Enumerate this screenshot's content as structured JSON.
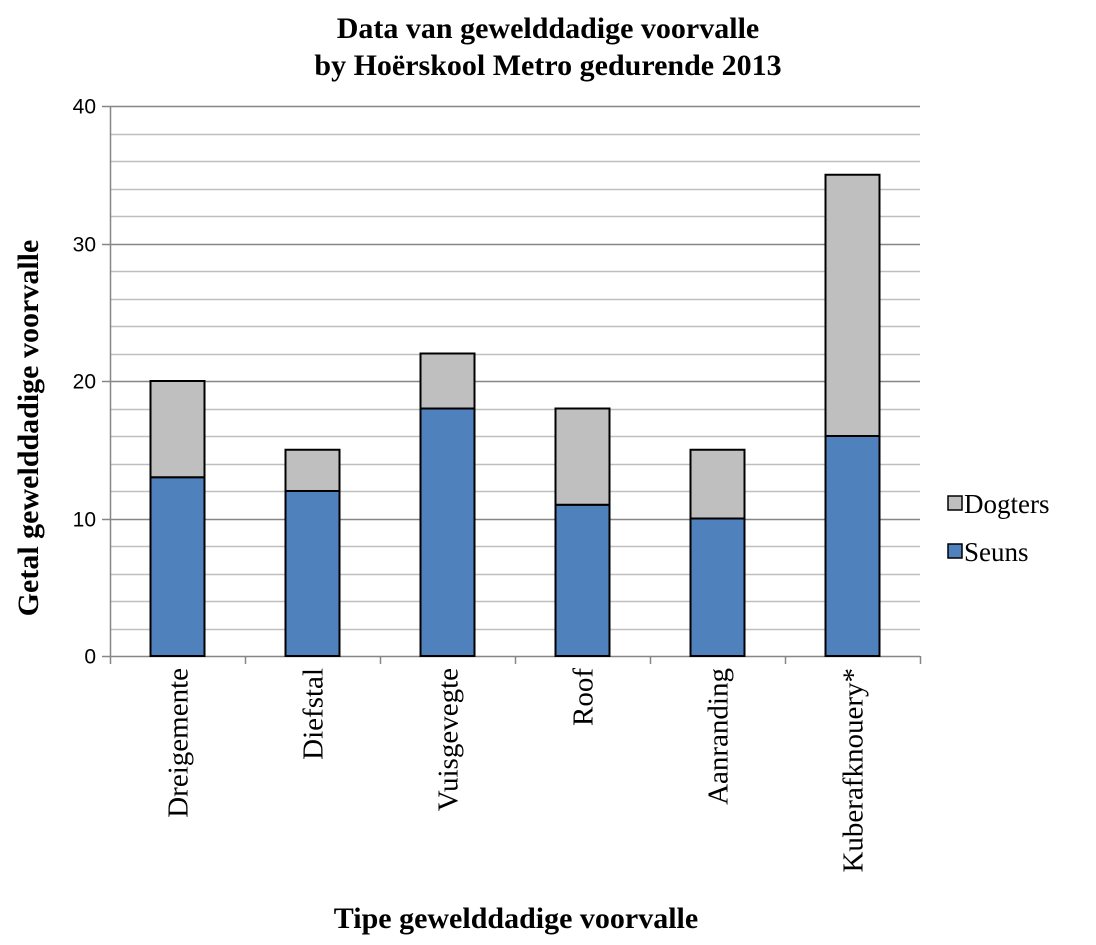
{
  "chart_data": {
    "type": "bar",
    "stacked": true,
    "title_line1": "Data van gewelddadige voorvalle",
    "title_line2": "by Hoërskool Metro gedurende 2013",
    "xlabel": "Tipe gewelddadige voorvalle",
    "ylabel": "Getal gewelddadige voorvalle",
    "categories": [
      "Dreigemente",
      "Diefstal",
      "Vuisgevegte",
      "Roof",
      "Aanranding",
      "Kuberafknouery*"
    ],
    "series": [
      {
        "name": "Seuns",
        "color": "#4f81bd",
        "values": [
          13,
          12,
          18,
          11,
          10,
          16
        ]
      },
      {
        "name": "Dogters",
        "color": "#bfbfbf",
        "values": [
          7,
          3,
          4,
          7,
          5,
          19
        ]
      }
    ],
    "ylim": [
      0,
      40
    ],
    "y_major_ticks": [
      0,
      10,
      20,
      30,
      40
    ],
    "y_minor_step": 2,
    "grid": true,
    "legend_position": "right",
    "legend_order": [
      "Dogters",
      "Seuns"
    ]
  }
}
